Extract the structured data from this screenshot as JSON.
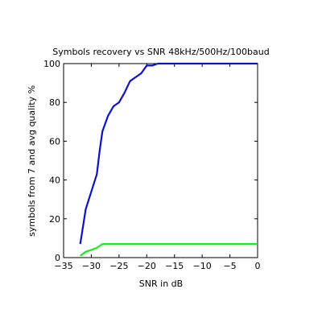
{
  "chart_data": {
    "type": "line",
    "title": "Symbols recovery vs SNR 48kHz/500Hz/100baud",
    "xlabel": "SNR in dB",
    "ylabel": "symbols from 7 and avg quality %",
    "xlim": [
      -35,
      0
    ],
    "ylim": [
      0,
      100
    ],
    "xticks": [
      -35,
      -30,
      -25,
      -20,
      -15,
      -10,
      -5,
      0
    ],
    "yticks": [
      0,
      20,
      40,
      60,
      80,
      100
    ],
    "xtick_labels": [
      "−35",
      "−30",
      "−25",
      "−20",
      "−15",
      "−10",
      "−5",
      "0"
    ],
    "ytick_labels": [
      "0",
      "20",
      "40",
      "60",
      "80",
      "100"
    ],
    "grid": false,
    "series": [
      {
        "color": "#1010c8",
        "x": [
          -32,
          -31,
          -30,
          -29,
          -28.5,
          -28,
          -27,
          -26,
          -25,
          -24,
          -23,
          -22,
          -21,
          -20,
          -19,
          -18,
          -17,
          -16,
          -15,
          -10,
          -5,
          0
        ],
        "y": [
          7,
          25,
          34,
          43,
          55,
          65,
          73,
          78,
          80,
          85,
          91,
          93,
          95,
          99,
          99,
          100,
          100,
          100,
          100,
          100,
          100,
          100
        ]
      },
      {
        "color": "#20e820",
        "x": [
          -32,
          -31,
          -30,
          -29,
          -28,
          -25,
          -20,
          -15,
          -10,
          -5,
          0
        ],
        "y": [
          1,
          3,
          4,
          5,
          7,
          7,
          7,
          7,
          7,
          7,
          7
        ]
      }
    ]
  }
}
